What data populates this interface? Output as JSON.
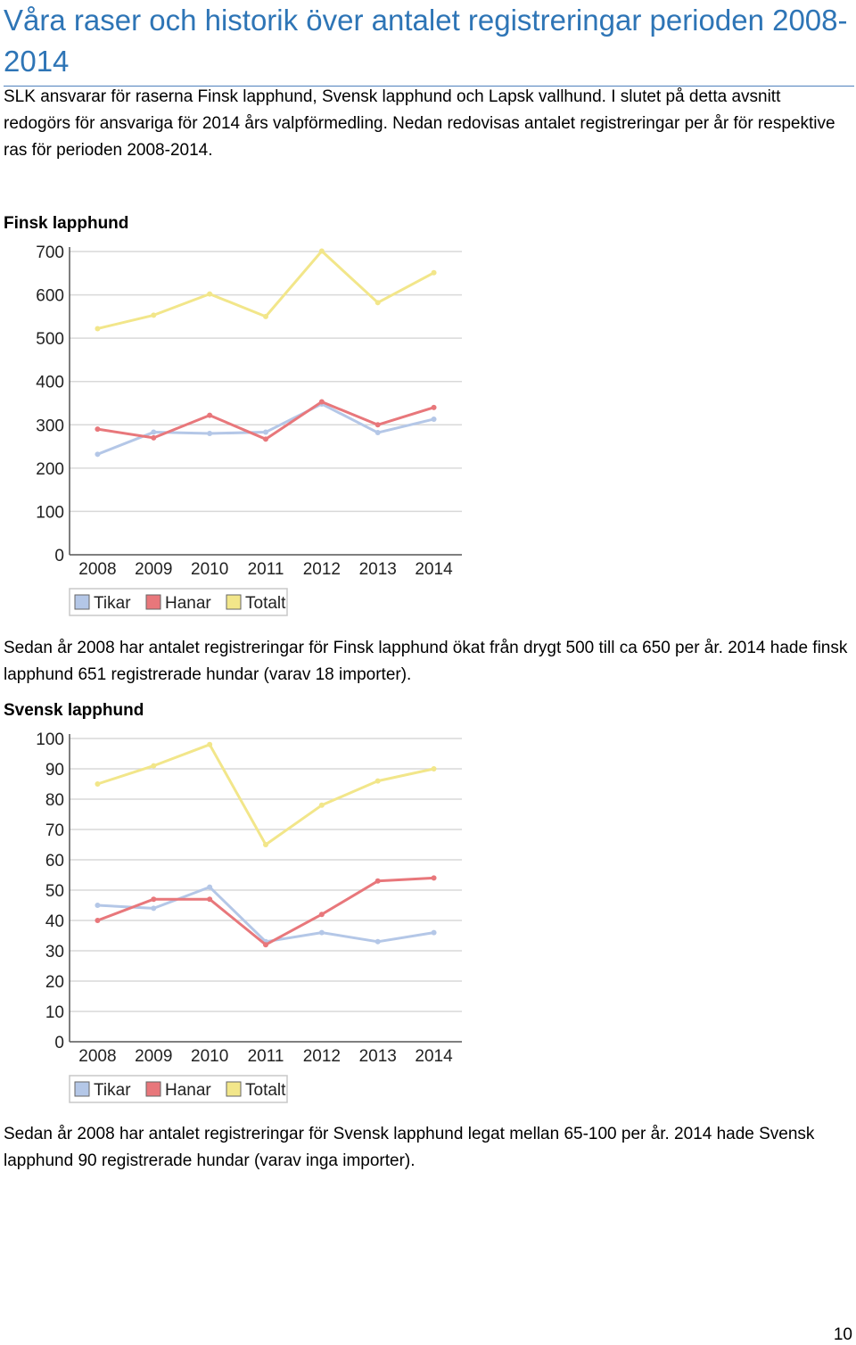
{
  "title": "Våra raser och historik över antalet registreringar perioden 2008-2014",
  "intro": "SLK ansvarar för raserna Finsk lapphund, Svensk lapphund och Lapsk vallhund. I slutet på detta avsnitt redogörs för ansvariga för 2014 års valpförmedling.  Nedan redovisas antalet registreringar per år för respektive ras för perioden 2008-2014.",
  "sections": [
    {
      "heading": "Finsk lapphund",
      "text": "Sedan år 2008 har antalet registreringar för Finsk lapphund ökat från drygt 500 till ca 650 per år. 2014 hade finsk lapphund 651 registrerade hundar (varav 18 importer)."
    },
    {
      "heading": "Svensk lapphund",
      "text": "Sedan år 2008 har antalet registreringar för Svensk lapphund legat mellan 65-100 per år. 2014 hade Svensk lapphund 90 registrerade hundar (varav inga importer)."
    }
  ],
  "page_number": "10",
  "colors": {
    "Tikar": "#b4c7e7",
    "Hanar": "#e8777b",
    "Totalt": "#f2e68a",
    "title": "#2e75b6"
  },
  "chart_data": [
    {
      "type": "line",
      "x": [
        "2008",
        "2009",
        "2010",
        "2011",
        "2012",
        "2013",
        "2014"
      ],
      "yticks": [
        0,
        100,
        200,
        300,
        400,
        500,
        600,
        700
      ],
      "ylim": [
        0,
        700
      ],
      "grid": true,
      "legend": "bottom",
      "series": [
        {
          "name": "Tikar",
          "values": [
            232,
            283,
            280,
            283,
            348,
            282,
            313
          ]
        },
        {
          "name": "Hanar",
          "values": [
            290,
            270,
            322,
            267,
            353,
            300,
            340
          ]
        },
        {
          "name": "Totalt",
          "values": [
            522,
            553,
            602,
            550,
            701,
            582,
            651
          ]
        }
      ]
    },
    {
      "type": "line",
      "x": [
        "2008",
        "2009",
        "2010",
        "2011",
        "2012",
        "2013",
        "2014"
      ],
      "yticks": [
        0,
        10,
        20,
        30,
        40,
        50,
        60,
        70,
        80,
        90,
        100
      ],
      "ylim": [
        0,
        100
      ],
      "grid": true,
      "legend": "bottom",
      "series": [
        {
          "name": "Tikar",
          "values": [
            45,
            44,
            51,
            33,
            36,
            33,
            36
          ]
        },
        {
          "name": "Hanar",
          "values": [
            40,
            47,
            47,
            32,
            42,
            53,
            54
          ]
        },
        {
          "name": "Totalt",
          "values": [
            85,
            91,
            98,
            65,
            78,
            86,
            90
          ]
        }
      ]
    }
  ]
}
